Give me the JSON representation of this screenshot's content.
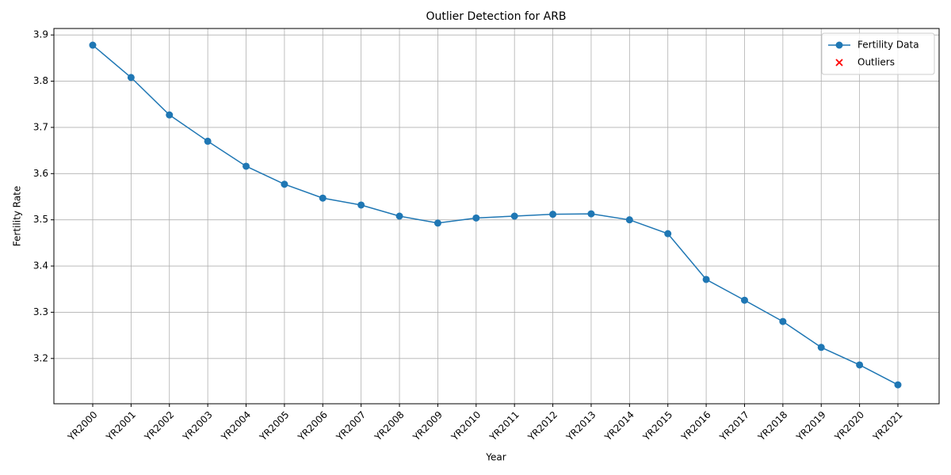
{
  "chart_data": {
    "type": "line",
    "title": "Outlier Detection for ARB",
    "x_label": "Year",
    "y_label": "Fertility Rate",
    "categories": [
      "YR2000",
      "YR2001",
      "YR2002",
      "YR2003",
      "YR2004",
      "YR2005",
      "YR2006",
      "YR2007",
      "YR2008",
      "YR2009",
      "YR2010",
      "YR2011",
      "YR2012",
      "YR2013",
      "YR2014",
      "YR2015",
      "YR2016",
      "YR2017",
      "YR2018",
      "YR2019",
      "YR2020",
      "YR2021"
    ],
    "series": [
      {
        "name": "Fertility Data",
        "color": "#1f77b4",
        "marker": "o",
        "values": [
          3.878,
          3.808,
          3.727,
          3.67,
          3.616,
          3.577,
          3.547,
          3.532,
          3.508,
          3.493,
          3.504,
          3.508,
          3.512,
          3.513,
          3.5,
          3.47,
          3.371,
          3.326,
          3.28,
          3.224,
          3.186,
          3.143
        ]
      },
      {
        "name": "Outliers",
        "color": "#ff0000",
        "marker": "x",
        "values": [
          null,
          null,
          null,
          null,
          null,
          null,
          null,
          null,
          null,
          null,
          null,
          null,
          null,
          null,
          null,
          null,
          null,
          null,
          null,
          null,
          null,
          null
        ]
      }
    ],
    "ylim": [
      3.102,
      3.914
    ],
    "yticks": [
      3.2,
      3.3,
      3.4,
      3.5,
      3.6,
      3.7,
      3.8,
      3.9
    ],
    "grid": true,
    "legend": "upper right"
  }
}
